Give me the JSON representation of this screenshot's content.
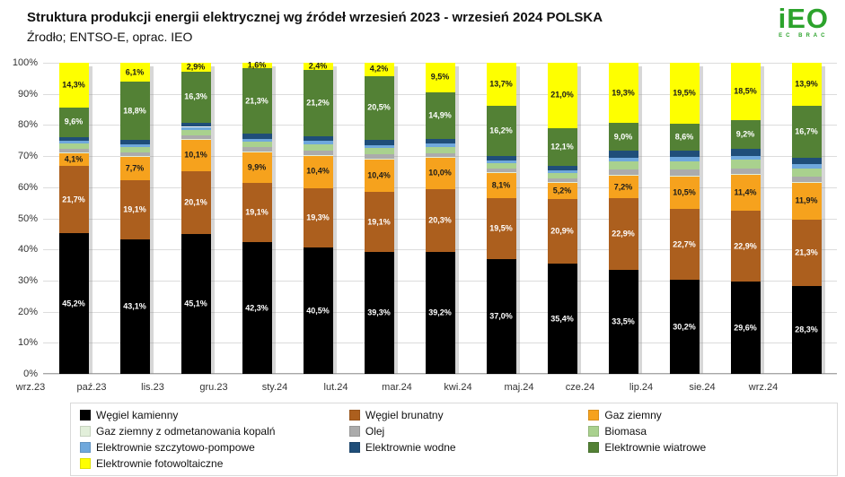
{
  "header": {
    "title": "Struktura produkcji energii elektrycznej wg źródeł wrzesień 2023 - wrzesień 2024 POLSKA",
    "source": "Źrodło; ENTSO-E, oprac. IEO",
    "logo_text": "iEO",
    "logo_tagline": "ec brac"
  },
  "chart_data": {
    "type": "bar",
    "stacked": true,
    "unit": "%",
    "ylim": [
      0,
      100
    ],
    "ytick_step": 10,
    "grid": true,
    "legend_position": "bottom",
    "note": "Small unlabeled segments (odmetanowanie, olej, biomasa, szczytowo-pompowe, wodne) estimated so each month totals 100%",
    "categories": [
      "wrz.23",
      "paź.23",
      "lis.23",
      "gru.23",
      "sty.24",
      "lut.24",
      "mar.24",
      "kwi.24",
      "maj.24",
      "cze.24",
      "lip.24",
      "sie.24",
      "wrz.24"
    ],
    "series": [
      {
        "name": "Węgiel kamienny",
        "color": "#000000",
        "label_color": "#ffffff",
        "show_labels": true,
        "values": [
          45.2,
          43.1,
          45.1,
          42.3,
          40.5,
          39.3,
          39.2,
          37.0,
          35.4,
          33.5,
          30.2,
          29.6,
          28.3
        ]
      },
      {
        "name": "Węgiel brunatny",
        "color": "#ac5f1e",
        "label_color": "#ffffff",
        "show_labels": true,
        "values": [
          21.7,
          19.1,
          20.1,
          19.1,
          19.3,
          19.1,
          20.3,
          19.5,
          20.9,
          22.9,
          22.7,
          22.9,
          21.3
        ]
      },
      {
        "name": "Gaz ziemny",
        "color": "#f6a21d",
        "label_color": "#1a1a1a",
        "show_labels": true,
        "values": [
          4.1,
          7.7,
          10.1,
          9.9,
          10.4,
          10.4,
          10.0,
          8.1,
          5.2,
          7.2,
          10.5,
          11.4,
          11.9
        ]
      },
      {
        "name": "Gaz ziemny z odmetanowania kopalń",
        "color": "#e2efda",
        "label_color": "#1a1a1a",
        "show_labels": false,
        "estimated": true,
        "values": [
          0.2,
          0.2,
          0.2,
          0.2,
          0.2,
          0.3,
          0.2,
          0.2,
          0.2,
          0.3,
          0.3,
          0.3,
          0.3
        ]
      },
      {
        "name": "Olej",
        "color": "#ababab",
        "label_color": "#1a1a1a",
        "show_labels": false,
        "estimated": true,
        "values": [
          1.1,
          1.1,
          1.2,
          1.3,
          1.4,
          1.4,
          1.3,
          1.2,
          1.2,
          1.8,
          1.9,
          1.8,
          1.7
        ]
      },
      {
        "name": "Biomasa",
        "color": "#a9d18e",
        "label_color": "#1a1a1a",
        "show_labels": false,
        "estimated": true,
        "values": [
          1.7,
          1.7,
          1.8,
          1.9,
          2.0,
          2.1,
          2.0,
          1.8,
          1.8,
          2.6,
          2.8,
          2.8,
          2.6
        ]
      },
      {
        "name": "Elektrownie szczytowo-pompowe",
        "color": "#6fa8dc",
        "label_color": "#1a1a1a",
        "show_labels": false,
        "estimated": true,
        "values": [
          0.8,
          0.8,
          0.9,
          0.9,
          1.0,
          1.0,
          1.0,
          0.9,
          0.8,
          1.3,
          1.3,
          1.3,
          1.2
        ]
      },
      {
        "name": "Elektrownie wodne",
        "color": "#1f4e79",
        "label_color": "#ffffff",
        "show_labels": false,
        "estimated": true,
        "values": [
          1.3,
          1.4,
          1.4,
          1.5,
          1.6,
          1.7,
          1.6,
          1.4,
          1.4,
          2.1,
          2.2,
          2.2,
          2.1
        ]
      },
      {
        "name": "Elektrownie wiatrowe",
        "color": "#538135",
        "label_color": "#ffffff",
        "show_labels": true,
        "values": [
          9.6,
          18.8,
          16.3,
          21.3,
          21.2,
          20.5,
          14.9,
          16.2,
          12.1,
          9.0,
          8.6,
          9.2,
          16.7
        ]
      },
      {
        "name": "Elektrownie fotowoltaiczne",
        "color": "#feff00",
        "label_color": "#1a1a1a",
        "show_labels": true,
        "values": [
          14.3,
          6.1,
          2.9,
          1.6,
          2.4,
          4.2,
          9.5,
          13.7,
          21.0,
          19.3,
          19.5,
          18.5,
          13.9
        ]
      }
    ]
  }
}
